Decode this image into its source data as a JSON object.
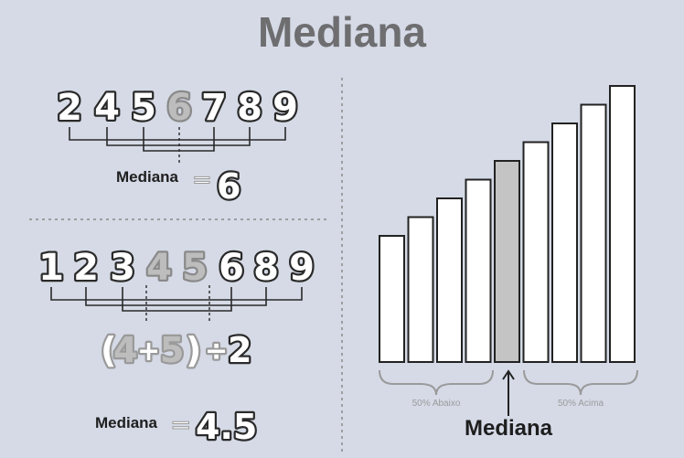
{
  "title": "Mediana",
  "odd_example": {
    "numbers": [
      "2",
      "4",
      "5",
      "6",
      "7",
      "8",
      "9"
    ],
    "median_index": 3,
    "label": "Mediana",
    "equals": "=",
    "result": "6"
  },
  "even_example": {
    "numbers": [
      "1",
      "2",
      "3",
      "4",
      "5",
      "6",
      "8",
      "9"
    ],
    "middle_indices": [
      3,
      4
    ],
    "formula": {
      "open_paren": "(",
      "a": "4",
      "plus": "+",
      "b": "5",
      "close_paren": ")",
      "divide": "÷",
      "divisor": "2"
    },
    "label": "Mediana",
    "equals": "=",
    "result": "4.5"
  },
  "chart_data": {
    "type": "bar",
    "bar_count": 9,
    "values": [
      1,
      2,
      3,
      4,
      5,
      6,
      7,
      8,
      9
    ],
    "median_bar_index": 4,
    "below_label": "50% Abaixo",
    "above_label": "50% Acima",
    "median_label": "Mediana"
  },
  "colors": {
    "background": "#d5dae6",
    "title": "#6e6e70",
    "digit_stroke": "#2a2a2a",
    "digit_fill_white": "#ffffff",
    "digit_fill_gray": "#bdbdbd",
    "bar_fill": "#ffffff",
    "median_bar_fill": "#c4c4c4",
    "line": "#222222"
  }
}
